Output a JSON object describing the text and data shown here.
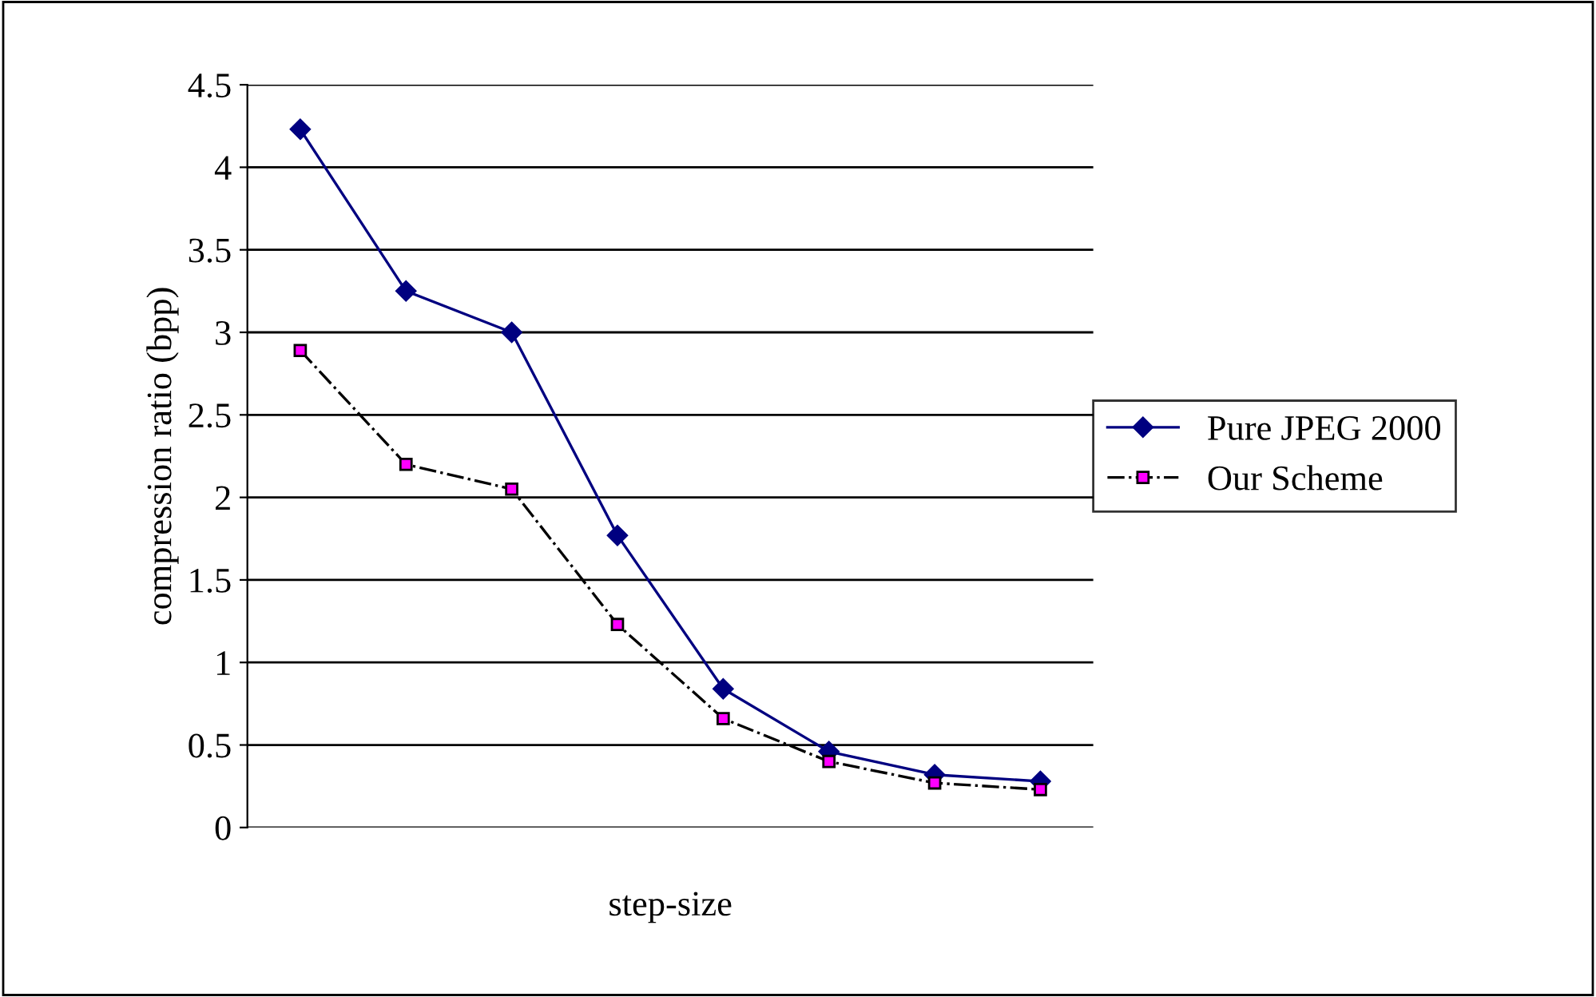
{
  "chart_data": {
    "type": "line",
    "xlabel": "step-size",
    "ylabel": "compression ratio (bpp)",
    "categories": [
      null,
      null,
      null,
      null,
      null,
      null,
      null,
      null
    ],
    "series": [
      {
        "name": "Pure JPEG 2000",
        "color": "#000080",
        "marker": "diamond",
        "line_style": "solid",
        "values": [
          4.23,
          3.25,
          3.0,
          1.77,
          0.84,
          0.46,
          0.32,
          0.28
        ]
      },
      {
        "name": "Our Scheme",
        "color": "#ff00ff",
        "marker": "square",
        "line_style": "dashdot",
        "values": [
          2.89,
          2.2,
          2.05,
          1.23,
          0.66,
          0.4,
          0.27,
          0.23
        ]
      }
    ],
    "ylim": [
      0,
      4.5
    ],
    "yticks": [
      0,
      0.5,
      1,
      1.5,
      2,
      2.5,
      3,
      3.5,
      4,
      4.5
    ],
    "grid": "y",
    "legend": "right"
  }
}
